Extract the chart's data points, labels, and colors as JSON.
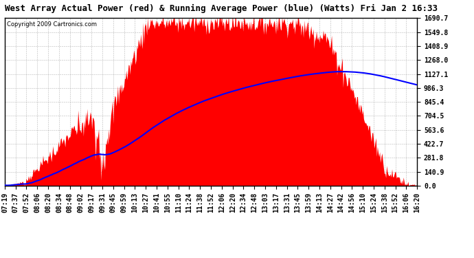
{
  "title": "West Array Actual Power (red) & Running Average Power (blue) (Watts) Fri Jan 2 16:33",
  "copyright": "Copyright 2009 Cartronics.com",
  "background_color": "#ffffff",
  "plot_bg_color": "#ffffff",
  "grid_color": "#888888",
  "fill_color": "#ff0000",
  "line_color": "#0000ff",
  "yticks": [
    0.0,
    140.9,
    281.8,
    422.7,
    563.6,
    704.5,
    845.4,
    986.3,
    1127.1,
    1268.0,
    1408.9,
    1549.8,
    1690.7
  ],
  "ymax": 1690.7,
  "x_labels": [
    "07:19",
    "07:37",
    "07:52",
    "08:06",
    "08:20",
    "08:34",
    "08:48",
    "09:02",
    "09:17",
    "09:31",
    "09:45",
    "09:59",
    "10:13",
    "10:27",
    "10:41",
    "10:55",
    "11:10",
    "11:24",
    "11:38",
    "11:52",
    "12:06",
    "12:20",
    "12:34",
    "12:48",
    "13:03",
    "13:17",
    "13:31",
    "13:45",
    "13:59",
    "14:13",
    "14:27",
    "14:42",
    "14:56",
    "15:10",
    "15:24",
    "15:38",
    "15:52",
    "16:06",
    "16:20"
  ],
  "title_fontsize": 9,
  "tick_fontsize": 7,
  "copyright_fontsize": 6
}
